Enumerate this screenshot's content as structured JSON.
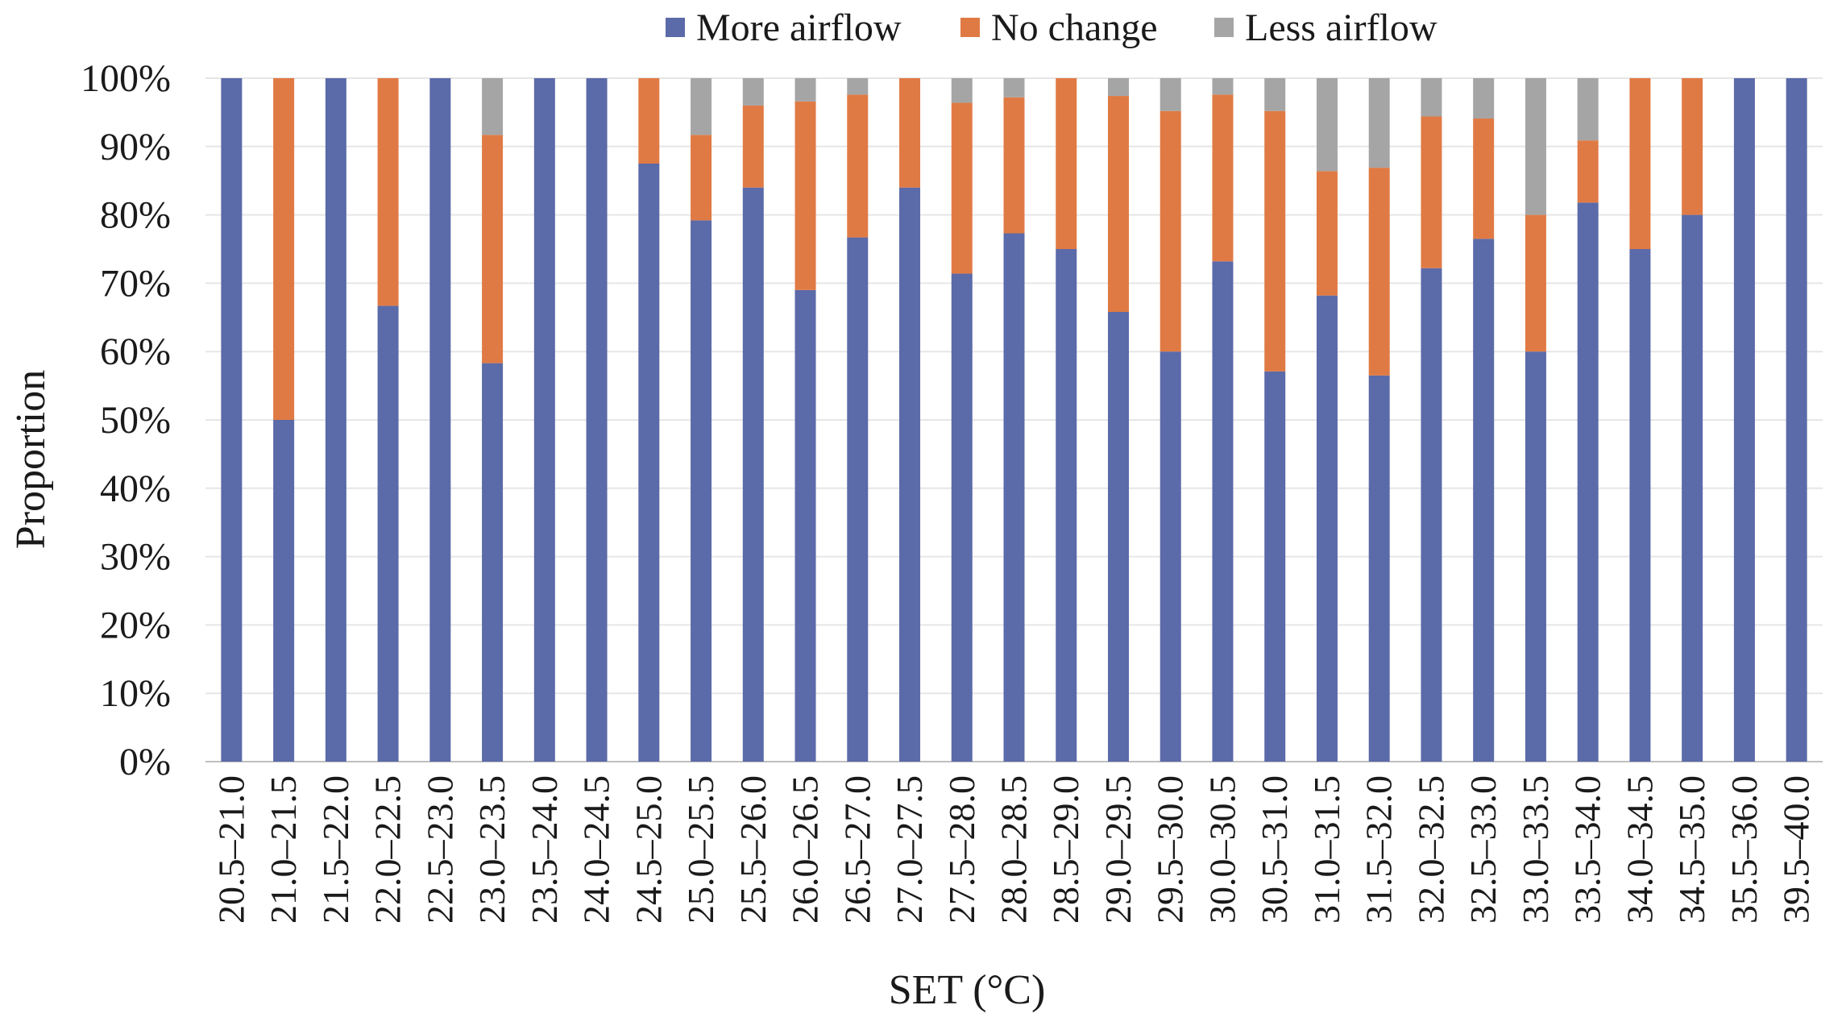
{
  "chart_data": {
    "type": "bar",
    "stacked": true,
    "title": "",
    "xlabel": "SET (°C)",
    "ylabel": "Proportion",
    "ylim": [
      0,
      100
    ],
    "y_ticks": [
      "0%",
      "10%",
      "20%",
      "30%",
      "40%",
      "50%",
      "60%",
      "70%",
      "80%",
      "90%",
      "100%"
    ],
    "legend_position": "top",
    "grid": true,
    "categories": [
      "20.5–21.0",
      "21.0–21.5",
      "21.5–22.0",
      "22.0–22.5",
      "22.5–23.0",
      "23.0–23.5",
      "23.5–24.0",
      "24.0–24.5",
      "24.5–25.0",
      "25.0–25.5",
      "25.5–26.0",
      "26.0–26.5",
      "26.5–27.0",
      "27.0–27.5",
      "27.5–28.0",
      "28.0–28.5",
      "28.5–29.0",
      "29.0–29.5",
      "29.5–30.0",
      "30.0–30.5",
      "30.5–31.0",
      "31.0–31.5",
      "31.5–32.0",
      "32.0–32.5",
      "32.5–33.0",
      "33.0–33.5",
      "33.5–34.0",
      "34.0–34.5",
      "34.5–35.0",
      "35.5–36.0",
      "39.5–40.0"
    ],
    "series": [
      {
        "name": "More airflow",
        "color": "#5b6aa8",
        "values": [
          100,
          50,
          100,
          66.7,
          100,
          58.3,
          100,
          100,
          87.5,
          79.2,
          84,
          69,
          76.7,
          84,
          71.4,
          77.3,
          75,
          65.8,
          60,
          73.2,
          57.1,
          68.2,
          56.5,
          72.2,
          76.5,
          60,
          81.8,
          75,
          80,
          100,
          100
        ]
      },
      {
        "name": "No change",
        "color": "#e07a44",
        "values": [
          0,
          50,
          0,
          33.3,
          0,
          33.4,
          0,
          0,
          12.5,
          12.5,
          12,
          27.6,
          20.9,
          16,
          25,
          19.9,
          25,
          31.6,
          35.2,
          24.4,
          38.1,
          18.2,
          30.4,
          22.2,
          17.6,
          20,
          9.1,
          25,
          20,
          0,
          0
        ]
      },
      {
        "name": "Less airflow",
        "color": "#a5a5a5",
        "values": [
          0,
          0,
          0,
          0,
          0,
          8.3,
          0,
          0,
          0,
          8.3,
          4,
          3.4,
          2.4,
          0,
          3.6,
          2.8,
          0,
          2.6,
          4.8,
          2.4,
          4.8,
          13.6,
          13.1,
          5.6,
          5.9,
          20,
          9.1,
          0,
          0,
          0,
          0
        ]
      }
    ]
  }
}
